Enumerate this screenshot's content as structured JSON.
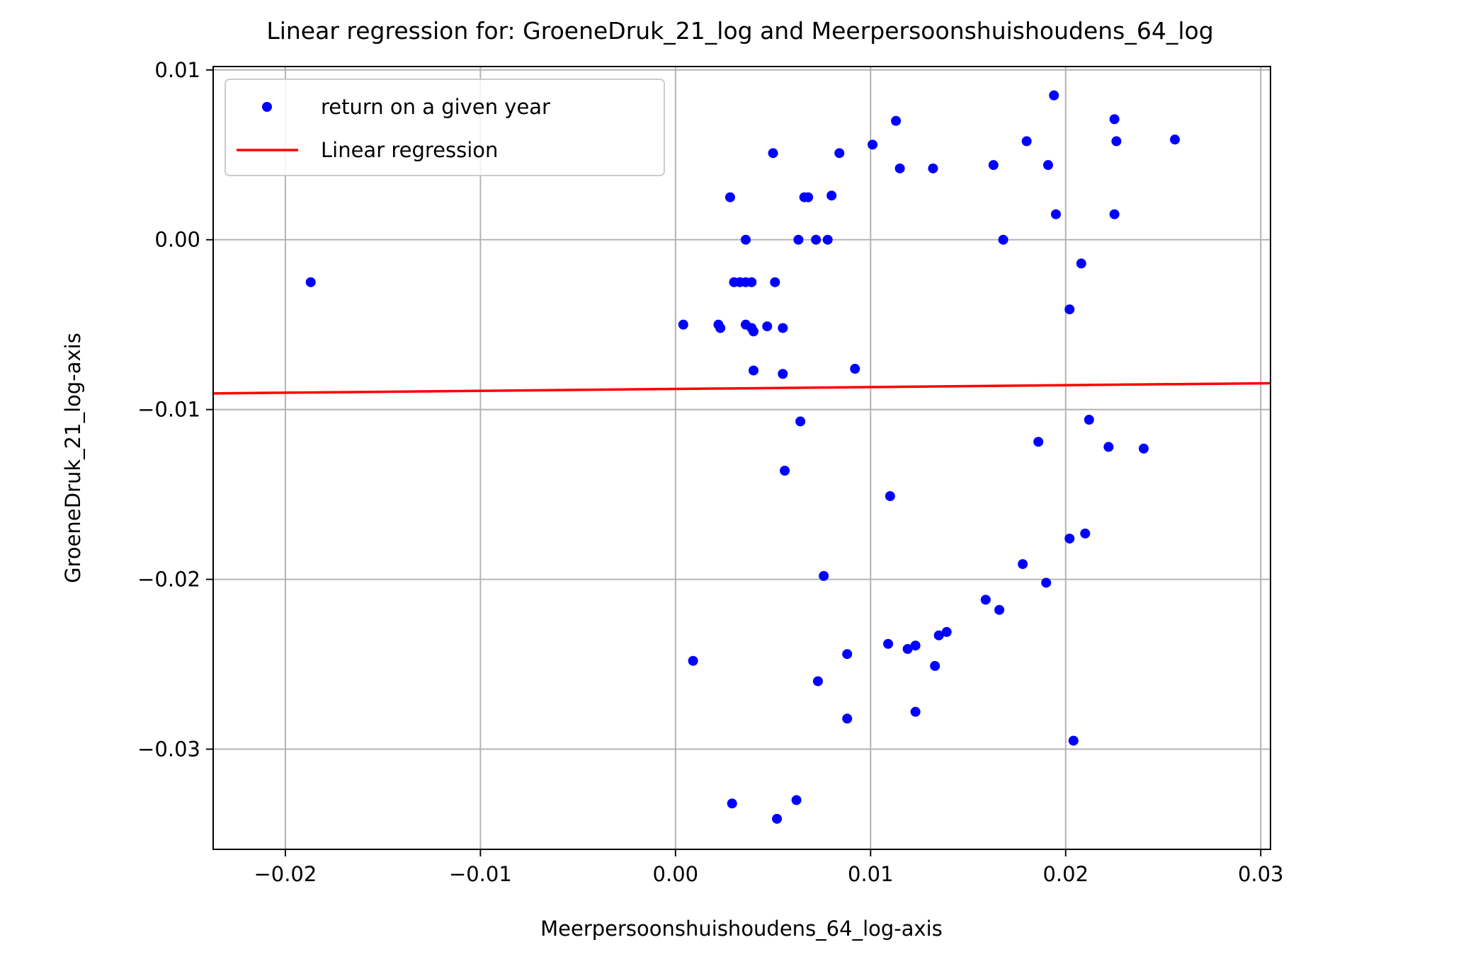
{
  "chart_data": {
    "type": "scatter",
    "title": "Linear regression for: GroeneDruk_21_log and Meerpersoonshuishoudens_64_log",
    "xlabel": "Meerpersoonshuishoudens_64_log-axis",
    "ylabel": "GroeneDruk_21_log-axis",
    "xlim": [
      -0.0237,
      0.0305
    ],
    "ylim": [
      -0.0359,
      0.0102
    ],
    "xticks": [
      -0.02,
      -0.01,
      0.0,
      0.01,
      0.02,
      0.03
    ],
    "xtick_labels": [
      "−0.02",
      "−0.01",
      "0.00",
      "0.01",
      "0.02",
      "0.03"
    ],
    "yticks": [
      0.01,
      0.0,
      -0.01,
      -0.02,
      -0.03
    ],
    "ytick_labels": [
      "0.01",
      "0.00",
      "−0.01",
      "−0.02",
      "−0.03"
    ],
    "grid": true,
    "legend_position": "upper-left",
    "series": [
      {
        "name": "return on a given year",
        "kind": "scatter",
        "color": "#0000ff",
        "points": [
          [
            -0.0187,
            -0.0025
          ],
          [
            0.0004,
            -0.005
          ],
          [
            0.0009,
            -0.0248
          ],
          [
            0.0022,
            -0.005
          ],
          [
            0.0023,
            -0.0052
          ],
          [
            0.0028,
            0.0025
          ],
          [
            0.0029,
            -0.0332
          ],
          [
            0.003,
            -0.0025
          ],
          [
            0.0033,
            -0.0025
          ],
          [
            0.0036,
            -0.0025
          ],
          [
            0.0036,
            0.0
          ],
          [
            0.0036,
            -0.005
          ],
          [
            0.0039,
            -0.0025
          ],
          [
            0.0039,
            -0.0052
          ],
          [
            0.004,
            -0.0054
          ],
          [
            0.004,
            -0.0077
          ],
          [
            0.0047,
            -0.0051
          ],
          [
            0.005,
            0.0051
          ],
          [
            0.0051,
            -0.0025
          ],
          [
            0.0052,
            -0.0341
          ],
          [
            0.0055,
            -0.0052
          ],
          [
            0.0055,
            -0.0079
          ],
          [
            0.0056,
            -0.0136
          ],
          [
            0.0062,
            -0.033
          ],
          [
            0.0063,
            0.0
          ],
          [
            0.0064,
            -0.0107
          ],
          [
            0.0066,
            0.0025
          ],
          [
            0.0068,
            0.0025
          ],
          [
            0.0072,
            0.0
          ],
          [
            0.0073,
            -0.026
          ],
          [
            0.0076,
            -0.0198
          ],
          [
            0.0078,
            0.0
          ],
          [
            0.008,
            0.0026
          ],
          [
            0.0084,
            0.0051
          ],
          [
            0.0088,
            -0.0244
          ],
          [
            0.0088,
            -0.0282
          ],
          [
            0.0092,
            -0.0076
          ],
          [
            0.0101,
            0.0056
          ],
          [
            0.0109,
            -0.0238
          ],
          [
            0.011,
            -0.0151
          ],
          [
            0.0113,
            0.007
          ],
          [
            0.0115,
            0.0042
          ],
          [
            0.0119,
            -0.0241
          ],
          [
            0.0123,
            -0.0239
          ],
          [
            0.0123,
            -0.0278
          ],
          [
            0.0132,
            0.0042
          ],
          [
            0.0133,
            -0.0251
          ],
          [
            0.0135,
            -0.0233
          ],
          [
            0.0139,
            -0.0231
          ],
          [
            0.0159,
            -0.0212
          ],
          [
            0.0163,
            0.0044
          ],
          [
            0.0166,
            -0.0218
          ],
          [
            0.0168,
            0.0
          ],
          [
            0.0178,
            -0.0191
          ],
          [
            0.018,
            0.0058
          ],
          [
            0.0186,
            -0.0119
          ],
          [
            0.019,
            -0.0202
          ],
          [
            0.0191,
            0.0044
          ],
          [
            0.0194,
            0.0085
          ],
          [
            0.0195,
            0.0015
          ],
          [
            0.0202,
            -0.0041
          ],
          [
            0.0202,
            -0.0176
          ],
          [
            0.0204,
            -0.0295
          ],
          [
            0.0208,
            -0.0014
          ],
          [
            0.021,
            -0.0173
          ],
          [
            0.0212,
            -0.0106
          ],
          [
            0.0222,
            -0.0122
          ],
          [
            0.0225,
            0.0071
          ],
          [
            0.0225,
            0.0015
          ],
          [
            0.0226,
            0.0058
          ],
          [
            0.024,
            -0.0123
          ],
          [
            0.0256,
            0.0059
          ]
        ]
      },
      {
        "name": "Linear regression",
        "kind": "line",
        "color": "#ff0000",
        "points": [
          [
            -0.0237,
            -0.00905
          ],
          [
            0.0305,
            -0.00845
          ]
        ]
      }
    ]
  }
}
